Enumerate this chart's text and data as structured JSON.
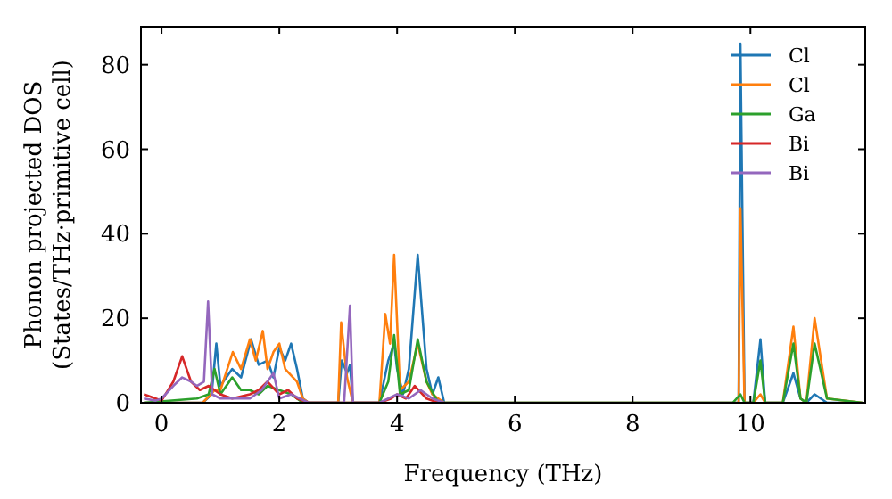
{
  "chart_data": {
    "type": "line",
    "xlabel": "Frequency (THz)",
    "ylabel": "Phonon projected DOS\n(States/THz·primitive cell)",
    "xlim": [
      -0.35,
      11.95
    ],
    "ylim": [
      0,
      89
    ],
    "xticks": [
      0,
      2,
      4,
      6,
      8,
      10
    ],
    "yticks": [
      0,
      20,
      40,
      60,
      80
    ],
    "grid": false,
    "legend": "top right",
    "marker": "none",
    "line_style": "solid",
    "series": [
      {
        "name": "Cl",
        "color": "#1f77b4",
        "x": [
          -0.3,
          0.7,
          0.85,
          0.93,
          1.0,
          1.2,
          1.35,
          1.52,
          1.65,
          1.8,
          1.9,
          2.0,
          2.1,
          2.2,
          2.3,
          2.4,
          2.5,
          3.0,
          3.06,
          3.15,
          3.2,
          3.25,
          3.7,
          3.85,
          3.95,
          4.0,
          4.1,
          4.2,
          4.35,
          4.5,
          4.6,
          4.7,
          4.8,
          9.7,
          9.8,
          9.83,
          9.9,
          10.05,
          10.17,
          10.25,
          10.55,
          10.73,
          10.85,
          10.95,
          11.09,
          11.3,
          11.9
        ],
        "values": [
          0,
          0,
          2,
          14,
          4,
          8,
          6,
          15,
          9,
          10,
          6,
          13,
          10,
          14,
          8,
          1,
          0,
          0,
          10,
          7,
          9,
          0,
          0,
          10,
          14,
          8,
          2,
          8,
          35,
          8,
          2,
          6,
          0,
          0,
          0,
          85,
          0,
          0,
          15,
          0,
          0,
          7,
          1,
          0,
          2,
          0,
          0
        ]
      },
      {
        "name": "Cl",
        "color": "#ff7f0e",
        "x": [
          -0.3,
          0.7,
          0.9,
          1.0,
          1.21,
          1.35,
          1.5,
          1.6,
          1.72,
          1.8,
          1.9,
          2.0,
          2.1,
          2.3,
          2.4,
          2.5,
          3.0,
          3.05,
          3.15,
          3.25,
          3.7,
          3.8,
          3.88,
          3.95,
          4.05,
          4.2,
          4.35,
          4.5,
          4.6,
          4.8,
          9.7,
          9.8,
          9.83,
          9.9,
          10.05,
          10.17,
          10.25,
          10.55,
          10.73,
          10.85,
          10.95,
          11.09,
          11.3,
          11.9
        ],
        "values": [
          0,
          0,
          3,
          3,
          12,
          8,
          15,
          10,
          17,
          8,
          12,
          14,
          8,
          5,
          1,
          0,
          0,
          19,
          6,
          0,
          0,
          21,
          14,
          35,
          3,
          5,
          14,
          5,
          2,
          0,
          0,
          0,
          46,
          0,
          0,
          2,
          0,
          0,
          18,
          1,
          0,
          20,
          1,
          0
        ]
      },
      {
        "name": "Ga",
        "color": "#2ca02c",
        "x": [
          -0.3,
          0.6,
          0.8,
          0.9,
          1.0,
          1.2,
          1.35,
          1.5,
          1.65,
          1.8,
          2.0,
          2.2,
          2.4,
          3.7,
          3.85,
          3.95,
          4.05,
          4.2,
          4.35,
          4.5,
          4.7,
          9.7,
          9.83,
          9.9,
          10.05,
          10.17,
          10.25,
          10.55,
          10.73,
          10.85,
          10.95,
          11.09,
          11.3,
          11.9
        ],
        "values": [
          0,
          1,
          2,
          8,
          2,
          6,
          3,
          3,
          2,
          4,
          3,
          2,
          0,
          0,
          5,
          16,
          2,
          3,
          15,
          5,
          0,
          0,
          2,
          0,
          0,
          10,
          0,
          0,
          14,
          1,
          0,
          14,
          1,
          0
        ]
      },
      {
        "name": "Bi",
        "color": "#d62728",
        "x": [
          -0.3,
          -0.1,
          0,
          0.2,
          0.35,
          0.5,
          0.65,
          0.8,
          1.0,
          1.2,
          1.5,
          1.65,
          1.8,
          2.0,
          2.15,
          2.3,
          2.5,
          3.7,
          3.9,
          4.0,
          4.15,
          4.3,
          4.5,
          4.7
        ],
        "values": [
          2,
          1,
          0.5,
          5,
          11,
          5,
          3,
          4,
          2,
          1,
          2,
          3,
          5,
          2,
          3,
          1,
          0,
          0,
          1,
          2,
          1,
          4,
          1,
          0
        ]
      },
      {
        "name": "Bi",
        "color": "#9467bd",
        "x": [
          -0.3,
          -0.1,
          0,
          0.2,
          0.35,
          0.5,
          0.6,
          0.72,
          0.79,
          0.86,
          1.0,
          1.5,
          1.7,
          1.9,
          2.0,
          2.2,
          2.5,
          3.1,
          3.2,
          3.25,
          3.7,
          4.0,
          4.2,
          4.4,
          4.6,
          4.8
        ],
        "values": [
          1,
          0.5,
          1,
          4,
          6,
          5,
          4,
          5,
          24,
          2,
          1,
          1,
          3,
          7,
          1,
          2,
          0,
          0,
          23,
          0,
          0,
          2,
          1,
          3,
          1,
          0
        ]
      }
    ]
  }
}
